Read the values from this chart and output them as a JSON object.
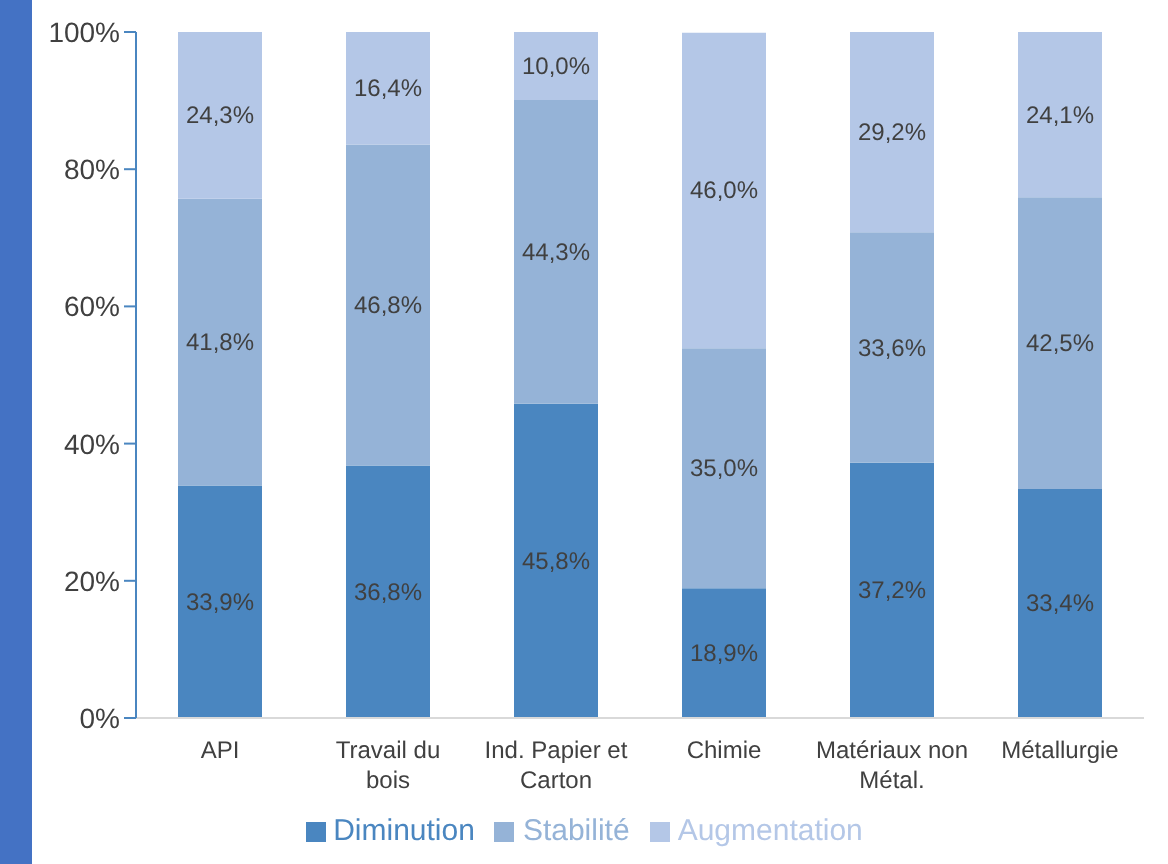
{
  "chart_data": {
    "type": "bar",
    "stacked": true,
    "categories": [
      "API",
      "Travail du bois",
      "Ind. Papier et Carton",
      "Chimie",
      "Matériaux non Métal.",
      "Métallurgie"
    ],
    "series": [
      {
        "name": "Diminution",
        "color": "#4a86c0",
        "values": [
          33.9,
          36.8,
          45.8,
          18.9,
          37.2,
          33.4
        ],
        "value_labels": [
          "33,9%",
          "36,8%",
          "45,8%",
          "18,9%",
          "37,2%",
          "33,4%"
        ]
      },
      {
        "name": "Stabilité",
        "color": "#95b3d7",
        "values": [
          41.8,
          46.8,
          44.3,
          35.0,
          33.6,
          42.5
        ],
        "value_labels": [
          "41,8%",
          "46,8%",
          "44,3%",
          "35,0%",
          "33,6%",
          "42,5%"
        ]
      },
      {
        "name": "Augmentation",
        "color": "#b4c7e7",
        "values": [
          24.3,
          16.4,
          10.0,
          46.0,
          29.2,
          24.1
        ],
        "value_labels": [
          "24,3%",
          "16,4%",
          "10,0%",
          "46,0%",
          "29,2%",
          "24,1%"
        ]
      }
    ],
    "ylim": [
      0,
      100
    ],
    "yticks": [
      {
        "value": 0,
        "label": "0%"
      },
      {
        "value": 20,
        "label": "20%"
      },
      {
        "value": 40,
        "label": "40%"
      },
      {
        "value": 60,
        "label": "60%"
      },
      {
        "value": 80,
        "label": "80%"
      },
      {
        "value": 100,
        "label": "100%"
      }
    ],
    "grid": false,
    "legend": "bottom"
  }
}
